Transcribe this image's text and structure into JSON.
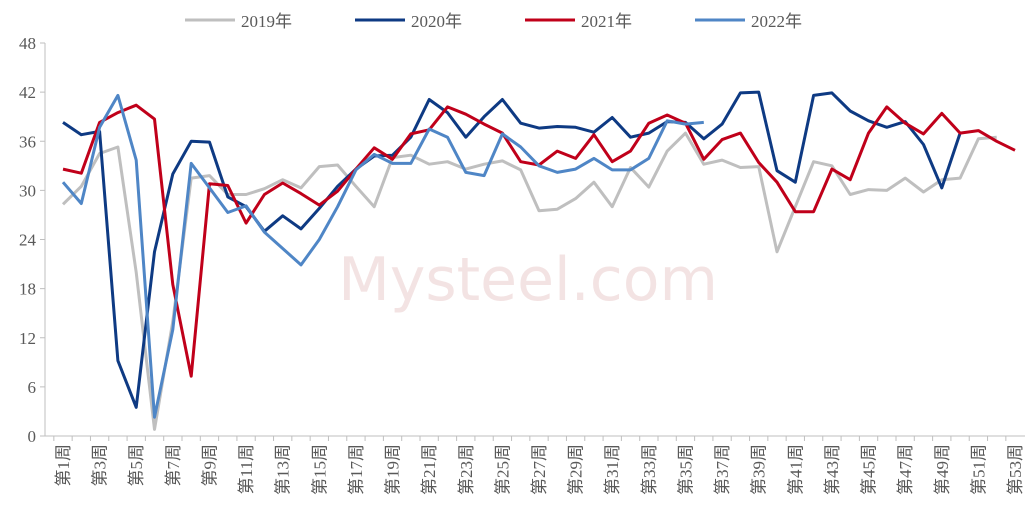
{
  "watermark": "Mysteel.com",
  "chart_data": {
    "type": "line",
    "categories": [
      "第1周",
      null,
      "第3周",
      null,
      "第5周",
      null,
      "第7周",
      null,
      "第9周",
      null,
      "第11周",
      null,
      "第13周",
      null,
      "第15周",
      null,
      "第17周",
      null,
      "第19周",
      null,
      "第21周",
      null,
      "第23周",
      null,
      "第25周",
      null,
      "第27周",
      null,
      "第29周",
      null,
      "第31周",
      null,
      "第33周",
      null,
      "第35周",
      null,
      "第37周",
      null,
      "第39周",
      null,
      "第41周",
      null,
      "第43周",
      null,
      "第45周",
      null,
      "第47周",
      null,
      "第49周",
      null,
      "第51周",
      null,
      "第53周"
    ],
    "series": [
      {
        "name": "2019年",
        "color": "#bfbfbf",
        "values": [
          28.3,
          30.5,
          34.5,
          35.3,
          20,
          0.8,
          14,
          31.5,
          31.8,
          29.5,
          29.5,
          30.2,
          31.3,
          30.3,
          32.9,
          33.1,
          30.5,
          28,
          34,
          34.3,
          33.2,
          33.5,
          32.6,
          33.2,
          33.6,
          32.5,
          27.5,
          27.7,
          29,
          31,
          28,
          32.8,
          30.4,
          34.8,
          37,
          33.2,
          33.7,
          32.8,
          32.9,
          22.5,
          28,
          33.5,
          33,
          29.5,
          30.1,
          30,
          31.5,
          29.8,
          31.3,
          31.5,
          36.3,
          36.5,
          null
        ]
      },
      {
        "name": "2020年",
        "color": "#0e3a83",
        "values": [
          38.3,
          36.8,
          37.2,
          9.2,
          3.5,
          22.5,
          32,
          36,
          35.9,
          29.2,
          28,
          25,
          26.9,
          25.3,
          27.8,
          30.5,
          32.6,
          34.2,
          34.3,
          36.5,
          41.1,
          39.5,
          36.5,
          39,
          41.1,
          38.2,
          37.6,
          37.8,
          37.7,
          37.1,
          38.9,
          36.5,
          37,
          38.4,
          38.3,
          36.3,
          38.1,
          41.9,
          42,
          32.4,
          31,
          41.6,
          41.9,
          39.7,
          38.5,
          37.7,
          38.4,
          35.6,
          30.3,
          37,
          null,
          null,
          null
        ]
      },
      {
        "name": "2021年",
        "color": "#c0001a",
        "values": [
          32.6,
          32.1,
          38.3,
          39.5,
          40.4,
          38.7,
          18.5,
          7.3,
          30.8,
          30.6,
          26,
          29.5,
          30.9,
          29.6,
          28.2,
          29.9,
          32.6,
          35.2,
          33.8,
          36.9,
          37.4,
          40.2,
          39.3,
          38.1,
          37,
          33.5,
          33.1,
          34.8,
          33.9,
          36.8,
          33.5,
          34.8,
          38.2,
          39.2,
          38.2,
          33.8,
          36.2,
          37,
          33.4,
          31,
          27.4,
          27.4,
          32.6,
          31.3,
          37,
          40.2,
          38.2,
          36.9,
          39.4,
          37,
          37.3,
          36,
          34.9
        ]
      },
      {
        "name": "2022年",
        "color": "#4f86c6",
        "values": [
          31,
          28.4,
          37.7,
          41.6,
          33.7,
          2.3,
          13,
          33.3,
          30.3,
          27.3,
          28.1,
          24.9,
          22.9,
          20.9,
          24,
          28,
          32.5,
          34.4,
          33.3,
          33.3,
          37.5,
          36.5,
          32.2,
          31.8,
          36.9,
          35.3,
          33,
          32.2,
          32.6,
          33.9,
          32.5,
          32.5,
          33.9,
          38.5,
          38.1,
          38.3,
          null,
          null,
          null,
          null,
          null,
          null,
          null,
          null,
          null,
          null,
          null,
          null,
          null,
          null,
          null,
          null,
          null
        ]
      }
    ],
    "ylim": [
      0,
      48
    ],
    "yticks": [
      0,
      6,
      12,
      18,
      24,
      30,
      36,
      42,
      48
    ],
    "legend": "top"
  }
}
